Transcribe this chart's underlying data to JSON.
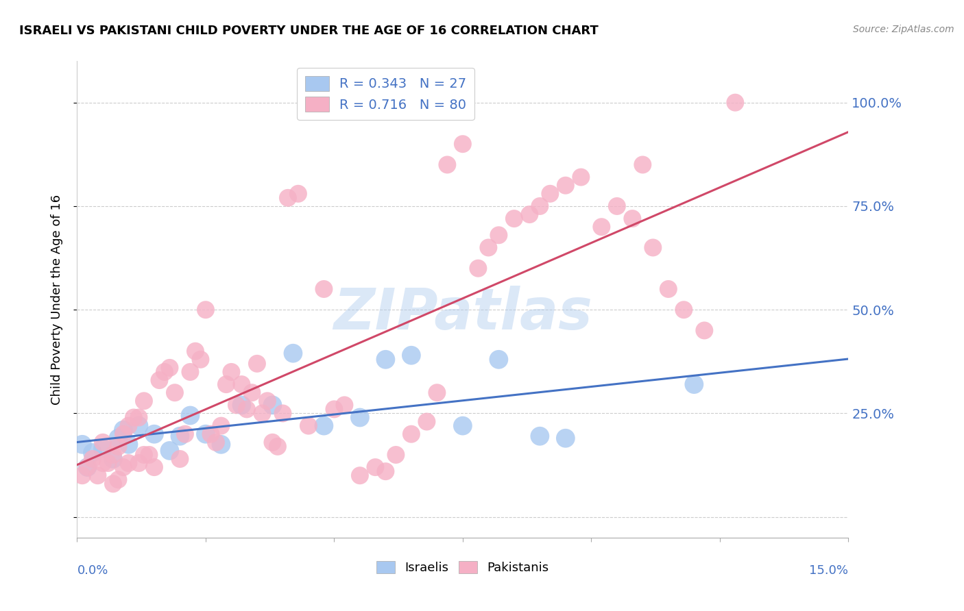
{
  "title": "ISRAELI VS PAKISTANI CHILD POVERTY UNDER THE AGE OF 16 CORRELATION CHART",
  "source": "Source: ZipAtlas.com",
  "ylabel": "Child Poverty Under the Age of 16",
  "xlim": [
    0.0,
    0.15
  ],
  "ylim": [
    -0.05,
    1.1
  ],
  "yticks": [
    0.0,
    0.25,
    0.5,
    0.75,
    1.0
  ],
  "right_ytick_labels": [
    "",
    "25.0%",
    "50.0%",
    "75.0%",
    "100.0%"
  ],
  "watermark": "ZIPatlas",
  "legend_r_israelis": "R = 0.343   N = 27",
  "legend_r_pakistanis": "R = 0.716   N = 80",
  "legend_label_israelis": "Israelis",
  "legend_label_pakistanis": "Pakistanis",
  "color_israelis": "#a8c8f0",
  "color_pakistanis": "#f5b0c5",
  "line_color_israelis": "#4472c4",
  "line_color_pakistanis": "#d04868",
  "text_color_blue": "#4472c4",
  "background_color": "#ffffff",
  "grid_color": "#cccccc",
  "isr_x": [
    0.001,
    0.002,
    0.003,
    0.005,
    0.007,
    0.008,
    0.009,
    0.01,
    0.012,
    0.015,
    0.018,
    0.02,
    0.022,
    0.025,
    0.028,
    0.032,
    0.038,
    0.042,
    0.048,
    0.055,
    0.06,
    0.065,
    0.075,
    0.082,
    0.09,
    0.095,
    0.12
  ],
  "isr_y": [
    0.175,
    0.12,
    0.155,
    0.165,
    0.14,
    0.19,
    0.21,
    0.175,
    0.22,
    0.2,
    0.16,
    0.195,
    0.245,
    0.2,
    0.175,
    0.27,
    0.27,
    0.395,
    0.22,
    0.24,
    0.38,
    0.39,
    0.22,
    0.38,
    0.195,
    0.19,
    0.32
  ],
  "pak_x": [
    0.001,
    0.002,
    0.003,
    0.004,
    0.005,
    0.005,
    0.006,
    0.007,
    0.007,
    0.008,
    0.008,
    0.009,
    0.009,
    0.01,
    0.01,
    0.011,
    0.012,
    0.012,
    0.013,
    0.013,
    0.014,
    0.015,
    0.016,
    0.017,
    0.018,
    0.019,
    0.02,
    0.021,
    0.022,
    0.023,
    0.024,
    0.025,
    0.026,
    0.027,
    0.028,
    0.029,
    0.03,
    0.031,
    0.032,
    0.033,
    0.034,
    0.035,
    0.036,
    0.037,
    0.038,
    0.039,
    0.04,
    0.041,
    0.043,
    0.045,
    0.048,
    0.05,
    0.052,
    0.055,
    0.058,
    0.06,
    0.062,
    0.065,
    0.068,
    0.07,
    0.072,
    0.075,
    0.078,
    0.08,
    0.082,
    0.085,
    0.088,
    0.09,
    0.092,
    0.095,
    0.098,
    0.102,
    0.105,
    0.108,
    0.11,
    0.112,
    0.115,
    0.118,
    0.122,
    0.128
  ],
  "pak_y": [
    0.1,
    0.12,
    0.14,
    0.1,
    0.13,
    0.18,
    0.13,
    0.08,
    0.15,
    0.09,
    0.17,
    0.12,
    0.2,
    0.13,
    0.22,
    0.24,
    0.13,
    0.24,
    0.15,
    0.28,
    0.15,
    0.12,
    0.33,
    0.35,
    0.36,
    0.3,
    0.14,
    0.2,
    0.35,
    0.4,
    0.38,
    0.5,
    0.2,
    0.18,
    0.22,
    0.32,
    0.35,
    0.27,
    0.32,
    0.26,
    0.3,
    0.37,
    0.25,
    0.28,
    0.18,
    0.17,
    0.25,
    0.77,
    0.78,
    0.22,
    0.55,
    0.26,
    0.27,
    0.1,
    0.12,
    0.11,
    0.15,
    0.2,
    0.23,
    0.3,
    0.85,
    0.9,
    0.6,
    0.65,
    0.68,
    0.72,
    0.73,
    0.75,
    0.78,
    0.8,
    0.82,
    0.7,
    0.75,
    0.72,
    0.85,
    0.65,
    0.55,
    0.5,
    0.45,
    1.0
  ]
}
